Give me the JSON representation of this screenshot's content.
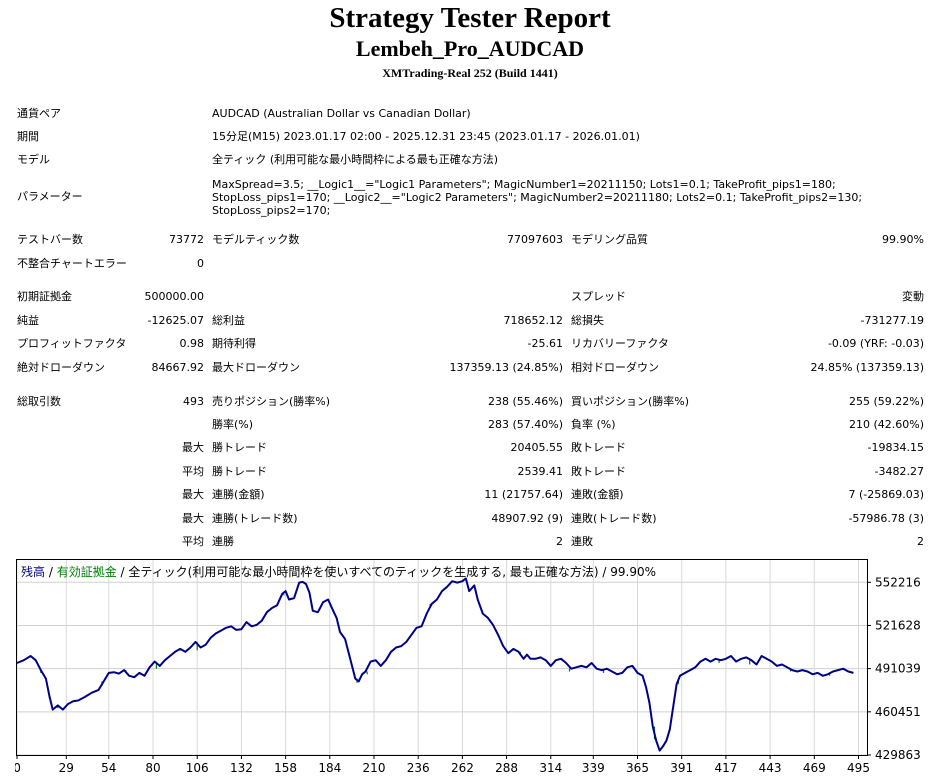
{
  "header": {
    "title": "Strategy Tester Report",
    "ea_name": "Lembeh_Pro_AUDCAD",
    "server": "XMTrading-Real 252 (Build 1441)"
  },
  "info": {
    "symbol_label": "通貨ペア",
    "symbol_value": "AUDCAD (Australian Dollar vs Canadian Dollar)",
    "period_label": "期間",
    "period_value": "15分足(M15) 2023.01.17 02:00 - 2025.12.31 23:45 (2023.01.17 - 2026.01.01)",
    "model_label": "モデル",
    "model_value": "全ティック (利用可能な最小時間枠による最も正確な方法)",
    "params_label": "パラメーター",
    "params_value": "MaxSpread=3.5; __Logic1__=\"Logic1 Parameters\"; MagicNumber1=20211150; Lots1=0.1; TakeProfit_pips1=180;\nStopLoss_pips1=170; __Logic2__=\"Logic2 Parameters\"; MagicNumber2=20211180; Lots2=0.1; TakeProfit_pips2=130;\nStopLoss_pips2=170;"
  },
  "stats": {
    "bars_label": "テストバー数",
    "bars_value": "73772",
    "ticks_label": "モデルティック数",
    "ticks_value": "77097603",
    "quality_label": "モデリング品質",
    "quality_value": "99.90%",
    "mismatch_label": "不整合チャートエラー",
    "mismatch_value": "0",
    "deposit_label": "初期証拠金",
    "deposit_value": "500000.00",
    "spread_label": "スプレッド",
    "spread_value": "変動",
    "net_label": "純益",
    "net_value": "-12625.07",
    "gross_profit_label": "総利益",
    "gross_profit_value": "718652.12",
    "gross_loss_label": "総損失",
    "gross_loss_value": "-731277.19",
    "pf_label": "プロフィットファクタ",
    "pf_value": "0.98",
    "expected_label": "期待利得",
    "expected_value": "-25.61",
    "recovery_label": "リカバリーファクタ",
    "recovery_value": "-0.09 (YRF: -0.03)",
    "abs_dd_label": "絶対ドローダウン",
    "abs_dd_value": "84667.92",
    "max_dd_label": "最大ドローダウン",
    "max_dd_value": "137359.13 (24.85%)",
    "rel_dd_label": "相対ドローダウン",
    "rel_dd_value": "24.85% (137359.13)",
    "trades_label": "総取引数",
    "trades_value": "493",
    "short_label": "売りポジション(勝率%)",
    "short_value": "238 (55.46%)",
    "long_label": "買いポジション(勝率%)",
    "long_value": "255 (59.22%)",
    "win_label": "勝率(%)",
    "win_value": "283 (57.40%)",
    "loss_label": "負率 (%)",
    "loss_value": "210 (42.60%)",
    "max_prefix": "最大",
    "avg_prefix": "平均",
    "largest_win_label": "勝トレード",
    "largest_win_value": "20405.55",
    "largest_loss_label": "敗トレード",
    "largest_loss_value": "-19834.15",
    "avg_win_label": "勝トレード",
    "avg_win_value": "2539.41",
    "avg_loss_label": "敗トレード",
    "avg_loss_value": "-3482.27",
    "max_cons_wins_label": "連勝(金額)",
    "max_cons_wins_value": "11 (21757.64)",
    "max_cons_losses_label": "連敗(金額)",
    "max_cons_losses_value": "7 (-25869.03)",
    "max_cons_profit_label": "連勝(トレード数)",
    "max_cons_profit_value": "48907.92 (9)",
    "max_cons_loss_label": "連敗(トレード数)",
    "max_cons_loss_value": "-57986.78 (3)",
    "avg_cons_wins_label": "連勝",
    "avg_cons_wins_value": "2",
    "avg_cons_losses_label": "連敗",
    "avg_cons_losses_value": "2"
  },
  "chart_data": {
    "type": "line",
    "legend": {
      "balance": "残高",
      "sep1": " / ",
      "equity": "有効証拠金",
      "sep2": " / ",
      "rest": "全ティック(利用可能な最小時間枠を使いすべてのティックを生成する, 最も正確な方法) / 99.90%"
    },
    "x_ticks": [
      0,
      29,
      54,
      80,
      106,
      132,
      158,
      184,
      210,
      236,
      262,
      288,
      314,
      339,
      365,
      391,
      417,
      443,
      469,
      495
    ],
    "y_ticks": [
      552216,
      521628,
      491039,
      460451,
      429863
    ],
    "ylim": [
      429863,
      568000
    ],
    "xlim": [
      0,
      500
    ],
    "colors": {
      "balance": "#00008b",
      "equity": "#008000",
      "legend_balance": "#00008b",
      "legend_equity": "#008000"
    },
    "balance_points": [
      [
        0,
        495000
      ],
      [
        4,
        497000
      ],
      [
        8,
        500000
      ],
      [
        11,
        497000
      ],
      [
        14,
        490000
      ],
      [
        17,
        484000
      ],
      [
        19,
        472000
      ],
      [
        21,
        462000
      ],
      [
        24,
        465000
      ],
      [
        27,
        462000
      ],
      [
        30,
        466000
      ],
      [
        33,
        468000
      ],
      [
        36,
        468500
      ],
      [
        40,
        471000
      ],
      [
        44,
        474000
      ],
      [
        48,
        476000
      ],
      [
        51,
        482000
      ],
      [
        54,
        488000
      ],
      [
        57,
        488500
      ],
      [
        60,
        487500
      ],
      [
        63,
        490000
      ],
      [
        66,
        486000
      ],
      [
        69,
        485000
      ],
      [
        72,
        488000
      ],
      [
        75,
        486000
      ],
      [
        78,
        492000
      ],
      [
        81,
        496000
      ],
      [
        84,
        493000
      ],
      [
        87,
        497000
      ],
      [
        90,
        500000
      ],
      [
        93,
        503000
      ],
      [
        96,
        505000
      ],
      [
        99,
        503000
      ],
      [
        102,
        506000
      ],
      [
        105,
        510000
      ],
      [
        108,
        506000
      ],
      [
        111,
        508000
      ],
      [
        114,
        513000
      ],
      [
        117,
        516000
      ],
      [
        120,
        518000
      ],
      [
        123,
        520000
      ],
      [
        126,
        521000
      ],
      [
        129,
        518500
      ],
      [
        132,
        519000
      ],
      [
        135,
        524000
      ],
      [
        138,
        521000
      ],
      [
        141,
        522000
      ],
      [
        144,
        525000
      ],
      [
        147,
        531000
      ],
      [
        150,
        534000
      ],
      [
        153,
        536000
      ],
      [
        156,
        544000
      ],
      [
        158,
        546000
      ],
      [
        160,
        540000
      ],
      [
        163,
        541000
      ],
      [
        166,
        552000
      ],
      [
        168,
        552500
      ],
      [
        170,
        551000
      ],
      [
        172,
        545000
      ],
      [
        174,
        532000
      ],
      [
        177,
        531000
      ],
      [
        180,
        538000
      ],
      [
        183,
        540000
      ],
      [
        186,
        532000
      ],
      [
        188,
        527000
      ],
      [
        190,
        517000
      ],
      [
        193,
        512000
      ],
      [
        196,
        498000
      ],
      [
        199,
        484000
      ],
      [
        201,
        482000
      ],
      [
        203,
        487000
      ],
      [
        205,
        489000
      ],
      [
        208,
        496000
      ],
      [
        211,
        497000
      ],
      [
        214,
        493000
      ],
      [
        217,
        497000
      ],
      [
        220,
        503000
      ],
      [
        223,
        506000
      ],
      [
        226,
        507000
      ],
      [
        229,
        510000
      ],
      [
        232,
        515000
      ],
      [
        235,
        520000
      ],
      [
        238,
        521000
      ],
      [
        241,
        530000
      ],
      [
        244,
        537000
      ],
      [
        247,
        540000
      ],
      [
        250,
        546000
      ],
      [
        253,
        549000
      ],
      [
        256,
        553000
      ],
      [
        259,
        552000
      ],
      [
        262,
        553000
      ],
      [
        264,
        555000
      ],
      [
        266,
        546000
      ],
      [
        269,
        550000
      ],
      [
        271,
        540000
      ],
      [
        274,
        530000
      ],
      [
        277,
        527000
      ],
      [
        280,
        522000
      ],
      [
        283,
        515000
      ],
      [
        286,
        507000
      ],
      [
        289,
        502000
      ],
      [
        292,
        505000
      ],
      [
        295,
        503000
      ],
      [
        298,
        498000
      ],
      [
        300,
        501000
      ],
      [
        302,
        498000
      ],
      [
        305,
        498000
      ],
      [
        308,
        499000
      ],
      [
        311,
        497000
      ],
      [
        314,
        493000
      ],
      [
        317,
        497000
      ],
      [
        320,
        498000
      ],
      [
        323,
        495000
      ],
      [
        326,
        491000
      ],
      [
        329,
        492000
      ],
      [
        332,
        493000
      ],
      [
        335,
        492000
      ],
      [
        338,
        495000
      ],
      [
        341,
        491000
      ],
      [
        344,
        490000
      ],
      [
        347,
        491000
      ],
      [
        350,
        489000
      ],
      [
        353,
        487000
      ],
      [
        356,
        488000
      ],
      [
        359,
        492000
      ],
      [
        362,
        493000
      ],
      [
        365,
        488000
      ],
      [
        368,
        486000
      ],
      [
        370,
        478000
      ],
      [
        372,
        467000
      ],
      [
        374,
        450000
      ],
      [
        376,
        440000
      ],
      [
        378,
        433000
      ],
      [
        380,
        436000
      ],
      [
        382,
        440000
      ],
      [
        384,
        448000
      ],
      [
        386,
        464000
      ],
      [
        388,
        480000
      ],
      [
        390,
        486000
      ],
      [
        393,
        488000
      ],
      [
        396,
        490000
      ],
      [
        399,
        492000
      ],
      [
        402,
        496000
      ],
      [
        405,
        498000
      ],
      [
        408,
        496000
      ],
      [
        411,
        498000
      ],
      [
        414,
        497000
      ],
      [
        417,
        498000
      ],
      [
        420,
        500000
      ],
      [
        423,
        496000
      ],
      [
        426,
        498000
      ],
      [
        429,
        499000
      ],
      [
        432,
        497000
      ],
      [
        435,
        494000
      ],
      [
        438,
        500000
      ],
      [
        441,
        498000
      ],
      [
        444,
        496000
      ],
      [
        447,
        493000
      ],
      [
        450,
        494000
      ],
      [
        453,
        492000
      ],
      [
        456,
        490000
      ],
      [
        459,
        489000
      ],
      [
        462,
        490000
      ],
      [
        465,
        489000
      ],
      [
        468,
        487000
      ],
      [
        471,
        488000
      ],
      [
        474,
        486000
      ],
      [
        477,
        487000
      ],
      [
        480,
        489000
      ],
      [
        483,
        490000
      ],
      [
        486,
        491000
      ],
      [
        489,
        489000
      ],
      [
        492,
        488000
      ]
    ],
    "equity_points": [
      [
        14,
        488000
      ],
      [
        19,
        470000
      ],
      [
        24,
        463000
      ],
      [
        50,
        479000
      ],
      [
        64,
        488000
      ],
      [
        82,
        491000
      ],
      [
        106,
        504000
      ],
      [
        157,
        543000
      ],
      [
        200,
        481000
      ],
      [
        206,
        487000
      ],
      [
        243,
        535000
      ],
      [
        296,
        501000
      ],
      [
        325,
        489000
      ],
      [
        345,
        488000
      ],
      [
        375,
        441000
      ],
      [
        389,
        483000
      ],
      [
        413,
        495000
      ],
      [
        431,
        494000
      ],
      [
        455,
        489000
      ],
      [
        478,
        486000
      ]
    ]
  }
}
